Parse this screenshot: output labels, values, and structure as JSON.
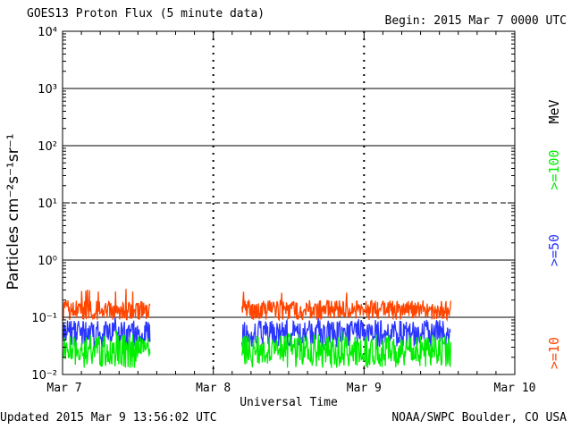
{
  "header": {
    "title": "GOES13 Proton Flux (5 minute data)",
    "begin": "Begin: 2015 Mar 7 0000 UTC"
  },
  "footer": {
    "updated": "Updated 2015 Mar  9 13:56:02 UTC",
    "credit": "NOAA/SWPC Boulder, CO USA"
  },
  "chart_data": {
    "type": "line",
    "title": "GOES13 Proton Flux (5 minute data)",
    "xlabel": "Universal Time",
    "ylabel": "Particles cm⁻²s⁻¹sr⁻¹",
    "yscale": "log",
    "ylim": [
      0.01,
      10000
    ],
    "xlim_days": [
      0,
      3
    ],
    "x_tick_labels": [
      "Mar 7",
      "Mar 8",
      "Mar 9",
      "Mar 10"
    ],
    "y_tick_labels": [
      "10⁻²",
      "10⁻¹",
      "10⁰",
      "10¹",
      "10²",
      "10³",
      "10⁴"
    ],
    "energy_unit": "MeV",
    "grid": {
      "horizontal_solid": [
        0.1,
        1,
        100,
        1000
      ],
      "horizontal_dashed": [
        10
      ],
      "day_dividers": true
    },
    "data_gap": {
      "start": "2015 Mar 7 ~14:00",
      "end": "2015 Mar 8 ~04:30"
    },
    "data_end": "2015 Mar 9 ~13:55",
    "series": [
      {
        "name": ">=10",
        "color": "#ff4500",
        "typical_range": [
          0.09,
          0.2
        ],
        "peak": 0.33
      },
      {
        "name": ">=50",
        "color": "#2a36ff",
        "typical_range": [
          0.03,
          0.09
        ],
        "peak": 0.1
      },
      {
        "name": ">=100",
        "color": "#00ee00",
        "typical_range": [
          0.013,
          0.05
        ],
        "peak": 0.06
      }
    ]
  }
}
